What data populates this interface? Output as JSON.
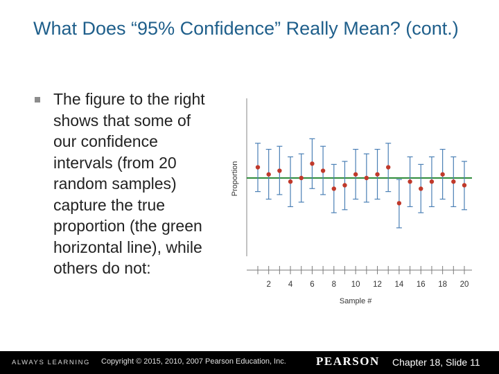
{
  "slide": {
    "title": "What Does “95% Confidence” Really Mean? (cont.)",
    "bullet": "The figure to the right shows that some of our confidence intervals (from 20 random samples) capture the true proportion (the green horizontal line), while others do not:"
  },
  "footer": {
    "left": "ALWAYS LEARNING",
    "copyright": "Copyright © 2015, 2010, 2007 Pearson Education, Inc.",
    "brand": "PEARSON",
    "slide_number": "Chapter 18, Slide 11"
  },
  "colors": {
    "title": "#1f5f8b",
    "interval": "#4a7fb5",
    "point": "#c0392b",
    "true_line": "#2e8b3a"
  },
  "chart_data": {
    "type": "scatter",
    "title": "",
    "xlabel": "Sample #",
    "ylabel": "Proportion",
    "x_ticks": [
      2,
      4,
      6,
      8,
      10,
      12,
      14,
      16,
      18,
      20
    ],
    "x_range": [
      1,
      20
    ],
    "true_proportion": 0.5,
    "y_range": [
      0,
      1
    ],
    "grid": false,
    "samples": [
      {
        "x": 1,
        "estimate": 0.571,
        "lower": 0.41,
        "upper": 0.73
      },
      {
        "x": 2,
        "estimate": 0.524,
        "lower": 0.36,
        "upper": 0.69
      },
      {
        "x": 3,
        "estimate": 0.548,
        "lower": 0.39,
        "upper": 0.71
      },
      {
        "x": 4,
        "estimate": 0.476,
        "lower": 0.31,
        "upper": 0.64
      },
      {
        "x": 5,
        "estimate": 0.5,
        "lower": 0.34,
        "upper": 0.66
      },
      {
        "x": 6,
        "estimate": 0.595,
        "lower": 0.43,
        "upper": 0.76
      },
      {
        "x": 7,
        "estimate": 0.548,
        "lower": 0.39,
        "upper": 0.71
      },
      {
        "x": 8,
        "estimate": 0.429,
        "lower": 0.27,
        "upper": 0.59
      },
      {
        "x": 9,
        "estimate": 0.452,
        "lower": 0.29,
        "upper": 0.61
      },
      {
        "x": 10,
        "estimate": 0.524,
        "lower": 0.36,
        "upper": 0.69
      },
      {
        "x": 11,
        "estimate": 0.5,
        "lower": 0.34,
        "upper": 0.66
      },
      {
        "x": 12,
        "estimate": 0.524,
        "lower": 0.36,
        "upper": 0.69
      },
      {
        "x": 13,
        "estimate": 0.571,
        "lower": 0.41,
        "upper": 0.73
      },
      {
        "x": 14,
        "estimate": 0.333,
        "lower": 0.17,
        "upper": 0.49
      },
      {
        "x": 15,
        "estimate": 0.476,
        "lower": 0.31,
        "upper": 0.64
      },
      {
        "x": 16,
        "estimate": 0.429,
        "lower": 0.27,
        "upper": 0.59
      },
      {
        "x": 17,
        "estimate": 0.476,
        "lower": 0.31,
        "upper": 0.64
      },
      {
        "x": 18,
        "estimate": 0.524,
        "lower": 0.36,
        "upper": 0.69
      },
      {
        "x": 19,
        "estimate": 0.476,
        "lower": 0.31,
        "upper": 0.64
      },
      {
        "x": 20,
        "estimate": 0.452,
        "lower": 0.29,
        "upper": 0.61
      }
    ]
  }
}
